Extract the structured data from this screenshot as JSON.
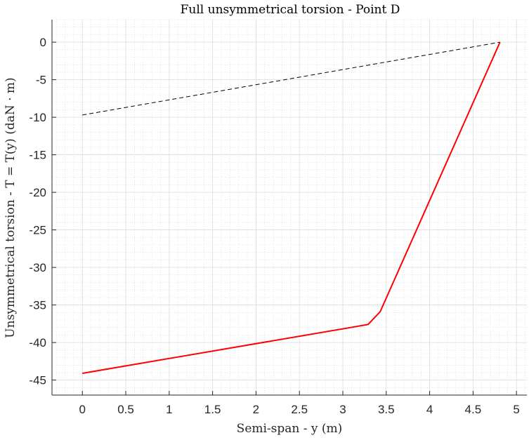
{
  "chart_data": {
    "type": "line",
    "title": "Full unsymmetrical torsion - Point D",
    "xlabel": "Semi-span - y (m)",
    "ylabel": "Unsymmetrical torsion - T = T(y) (daN · m)",
    "xlim": [
      -0.35,
      5.12
    ],
    "ylim": [
      -47,
      3
    ],
    "xticks": [
      0,
      0.5,
      1,
      1.5,
      2,
      2.5,
      3,
      3.5,
      4,
      4.5,
      5
    ],
    "yticks": [
      0,
      -5,
      -10,
      -15,
      -20,
      -25,
      -30,
      -35,
      -40,
      -45
    ],
    "grid": true,
    "minor_grid": true,
    "series": [
      {
        "color": "#ff0000",
        "style": "solid",
        "x": [
          0,
          3.29,
          3.43,
          4.81
        ],
        "y": [
          -44.1,
          -37.6,
          -35.9,
          0
        ]
      },
      {
        "color": "#000000",
        "style": "dashed",
        "x": [
          0,
          4.81
        ],
        "y": [
          -9.7,
          0
        ]
      }
    ]
  }
}
